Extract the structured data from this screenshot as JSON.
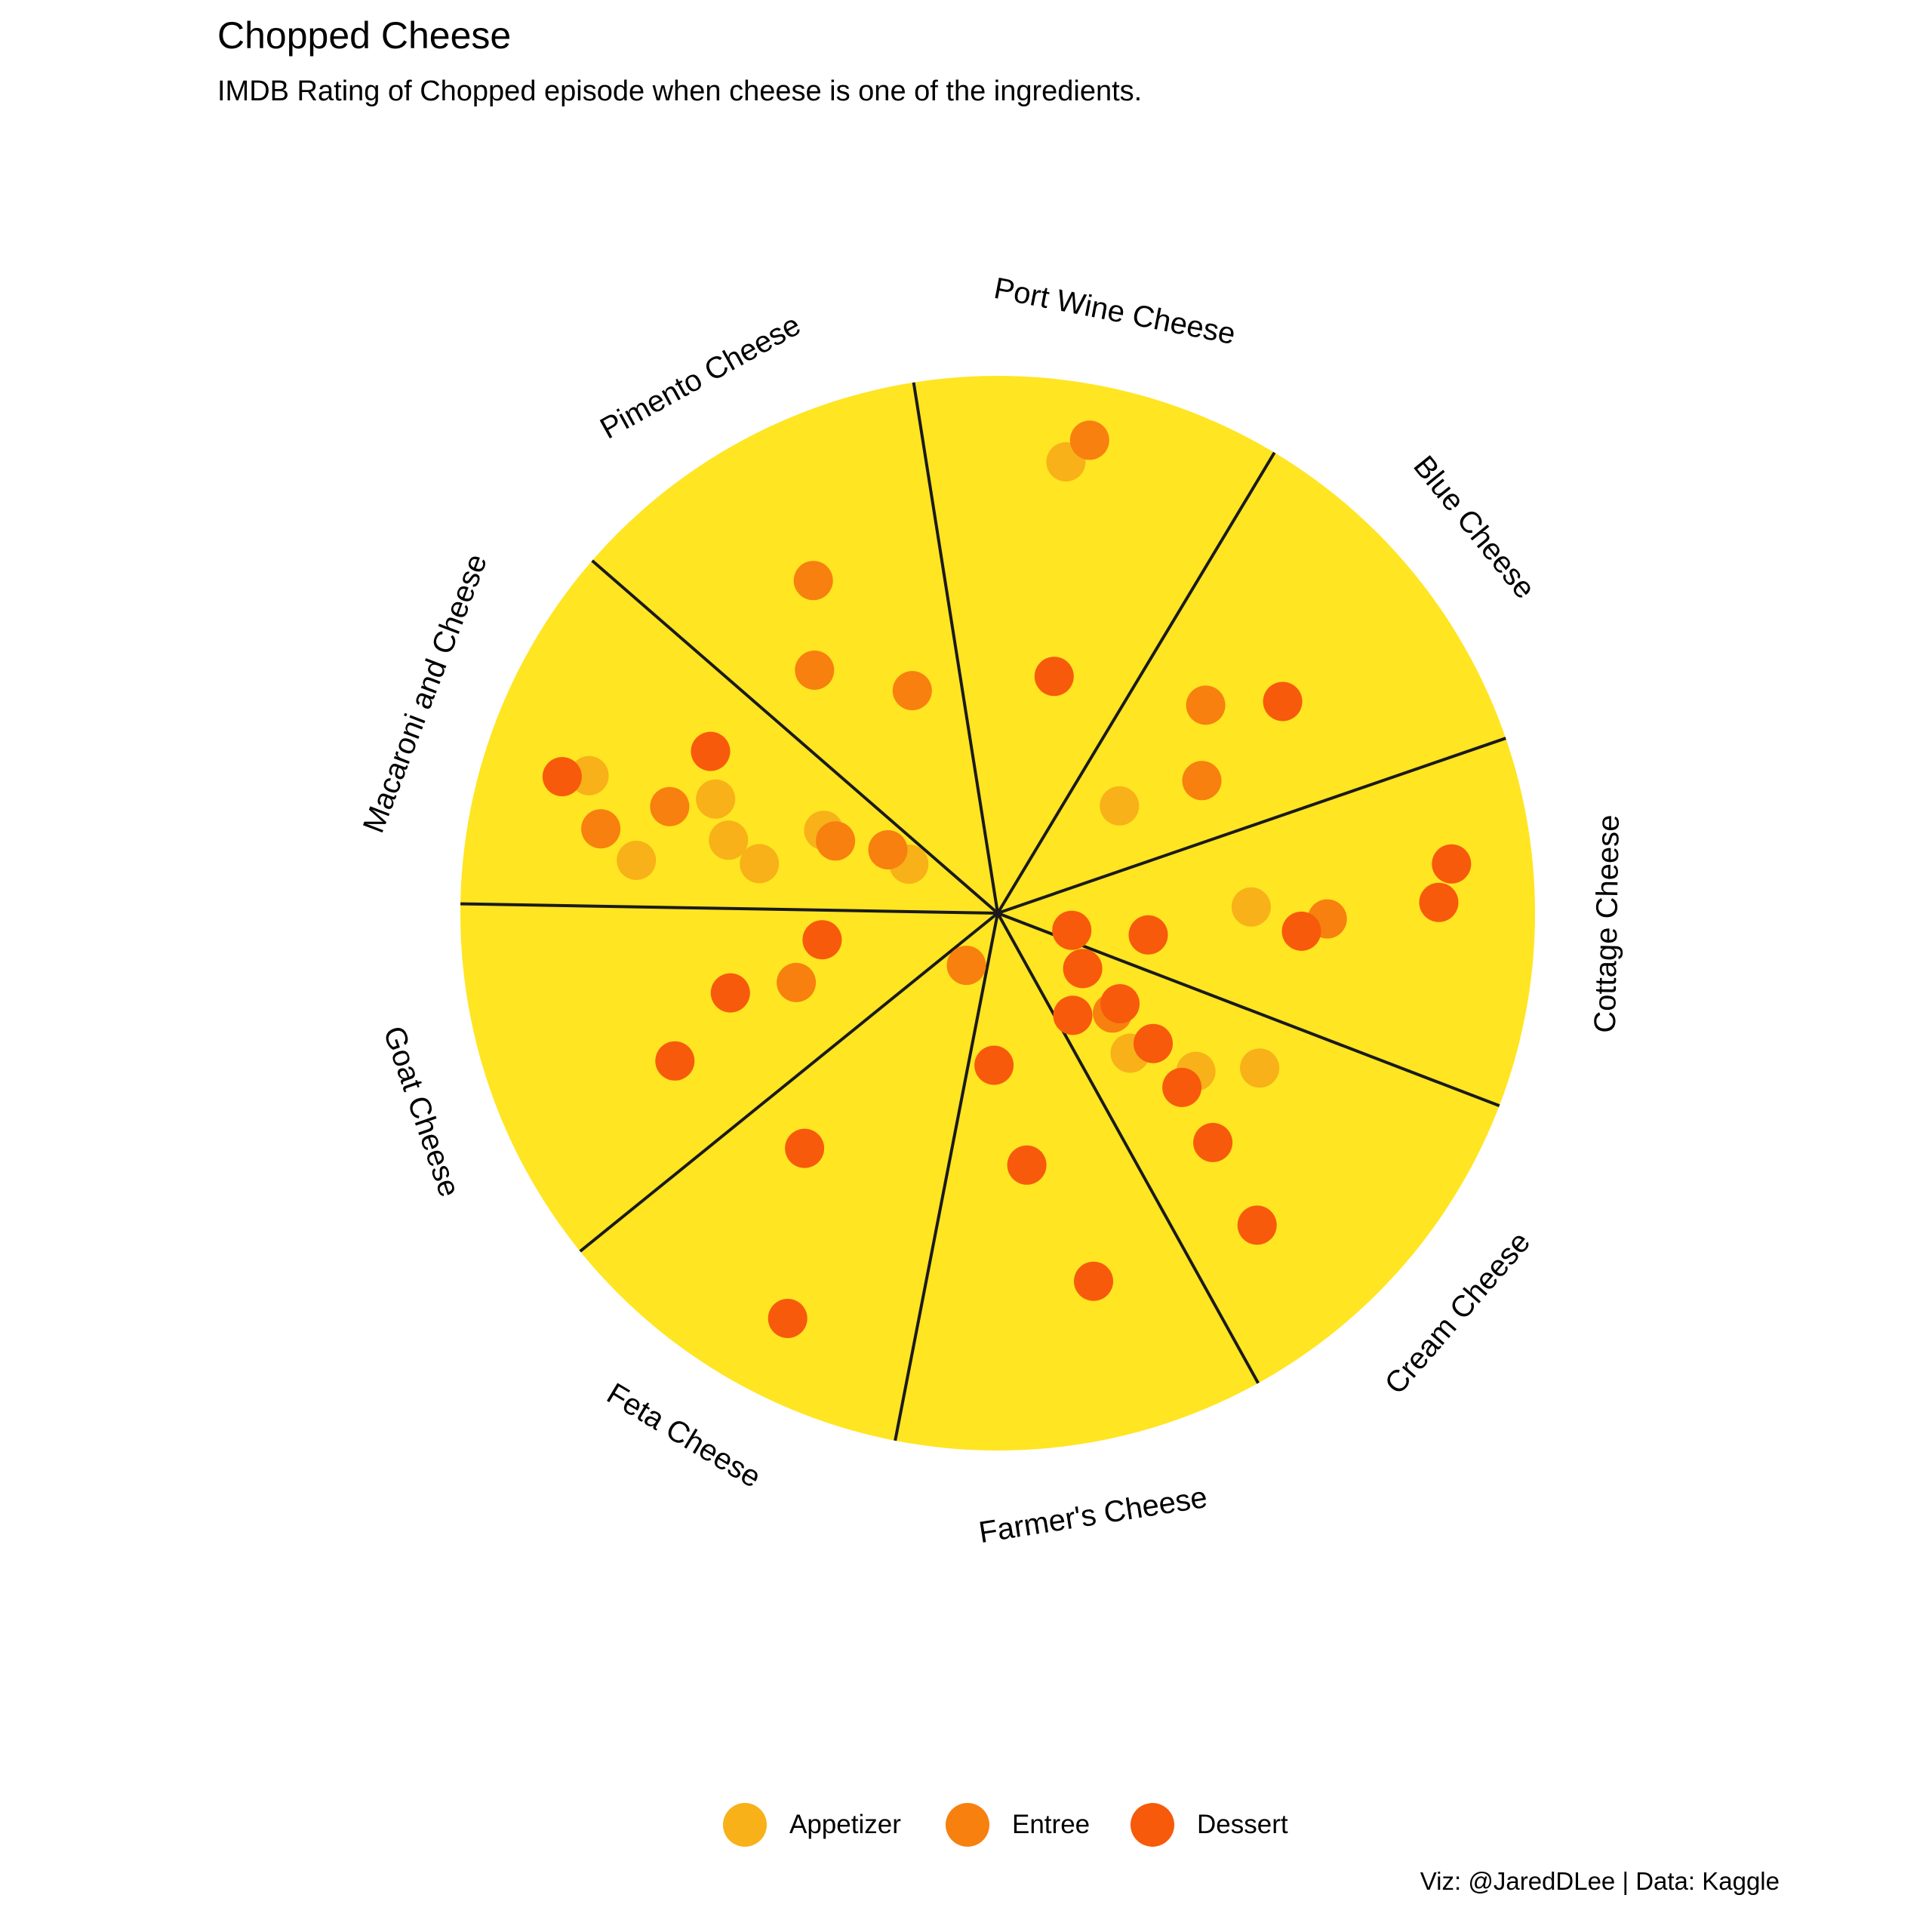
{
  "title": "Chopped Cheese",
  "subtitle": "IMDB Rating of Chopped episode when cheese is one of the ingredients.",
  "caption": "Viz: @JaredDLee | Data: Kaggle",
  "colors": {
    "background": "#FFFFFF",
    "cheese": "#FFE522",
    "divider": "#1A1A1A",
    "Appetizer": "#F8B119",
    "Entree": "#F7800F",
    "Dessert": "#F75A0B"
  },
  "legend": [
    {
      "label": "Appetizer",
      "color_key": "Appetizer"
    },
    {
      "label": "Entree",
      "color_key": "Entree"
    },
    {
      "label": "Dessert",
      "color_key": "Dessert"
    }
  ],
  "chart_data": {
    "type": "scatter",
    "coordinate_system": "polar",
    "title": "Chopped Cheese",
    "subtitle": "IMDB Rating of Chopped episode when cheese is one of the ingredients.",
    "categories": [
      "Port Wine Cheese",
      "Blue Cheese",
      "Cottage Cheese",
      "Cream Cheese",
      "Farmer's Cheese",
      "Feta Cheese",
      "Goat Cheese",
      "Macaroni and Cheese",
      "Pimento Cheese"
    ],
    "series": [
      {
        "name": "Appetizer",
        "points": [
          {
            "cheese": "Port Wine Cheese",
            "pos": 0.9
          },
          {
            "cheese": "Blue Cheese",
            "pos": 0.32
          },
          {
            "cheese": "Cottage Cheese",
            "pos": 0.5
          },
          {
            "cheese": "Cream Cheese",
            "pos": 0.6
          },
          {
            "cheese": "Cream Cheese",
            "pos": 0.5
          },
          {
            "cheese": "Cream Cheese",
            "pos": 0.38
          },
          {
            "cheese": "Macaroni and Cheese",
            "pos": 0.72
          },
          {
            "cheese": "Macaroni and Cheese",
            "pos": 0.48
          },
          {
            "cheese": "Macaroni and Cheese",
            "pos": 0.55
          },
          {
            "cheese": "Macaroni and Cheese",
            "pos": 0.85
          },
          {
            "cheese": "Macaroni and Cheese",
            "pos": 0.6
          },
          {
            "cheese": "Macaroni and Cheese",
            "pos": 0.38
          },
          {
            "cheese": "Macaroni and Cheese",
            "pos": 0.2
          }
        ]
      },
      {
        "name": "Entree",
        "points": [
          {
            "cheese": "Port Wine Cheese",
            "pos": 0.95
          },
          {
            "cheese": "Blue Cheese",
            "pos": 0.58
          },
          {
            "cheese": "Blue Cheese",
            "pos": 0.48
          },
          {
            "cheese": "Cottage Cheese",
            "pos": 0.65
          },
          {
            "cheese": "Cream Cheese",
            "pos": 0.3
          },
          {
            "cheese": "Feta Cheese",
            "pos": 0.12
          },
          {
            "cheese": "Goat Cheese",
            "pos": 0.42
          },
          {
            "cheese": "Macaroni and Cheese",
            "pos": 0.8
          },
          {
            "cheese": "Macaroni and Cheese",
            "pos": 0.68
          },
          {
            "cheese": "Macaroni and Cheese",
            "pos": 0.35
          },
          {
            "cheese": "Macaroni and Cheese",
            "pos": 0.25
          },
          {
            "cheese": "Pimento Cheese",
            "pos": 0.6
          },
          {
            "cheese": "Pimento Cheese",
            "pos": 0.75
          },
          {
            "cheese": "Pimento Cheese",
            "pos": 0.47
          }
        ]
      },
      {
        "name": "Dessert",
        "points": [
          {
            "cheese": "Port Wine Cheese",
            "pos": 0.48
          },
          {
            "cheese": "Blue Cheese",
            "pos": 0.7
          },
          {
            "cheese": "Cottage Cheese",
            "pos": 0.9
          },
          {
            "cheese": "Cottage Cheese",
            "pos": 0.87
          },
          {
            "cheese": "Cottage Cheese",
            "pos": 0.6
          },
          {
            "cheese": "Cottage Cheese",
            "pos": 0.3
          },
          {
            "cheese": "Cottage Cheese",
            "pos": 0.15
          },
          {
            "cheese": "Cream Cheese",
            "pos": 0.2
          },
          {
            "cheese": "Cream Cheese",
            "pos": 0.3
          },
          {
            "cheese": "Cream Cheese",
            "pos": 0.4
          },
          {
            "cheese": "Cream Cheese",
            "pos": 0.5
          },
          {
            "cheese": "Cream Cheese",
            "pos": 0.62
          },
          {
            "cheese": "Cream Cheese",
            "pos": 0.8
          },
          {
            "cheese": "Cream Cheese",
            "pos": 0.25
          },
          {
            "cheese": "Farmer's Cheese",
            "pos": 0.75
          },
          {
            "cheese": "Farmer's Cheese",
            "pos": 0.5
          },
          {
            "cheese": "Farmer's Cheese",
            "pos": 0.3
          },
          {
            "cheese": "Feta Cheese",
            "pos": 0.9
          },
          {
            "cheese": "Feta Cheese",
            "pos": 0.6
          },
          {
            "cheese": "Goat Cheese",
            "pos": 0.7
          },
          {
            "cheese": "Goat Cheese",
            "pos": 0.55
          },
          {
            "cheese": "Goat Cheese",
            "pos": 0.35
          },
          {
            "cheese": "Macaroni and Cheese",
            "pos": 0.9
          },
          {
            "cheese": "Macaroni and Cheese",
            "pos": 0.65
          }
        ]
      }
    ],
    "legend_position": "bottom",
    "grid": false
  }
}
